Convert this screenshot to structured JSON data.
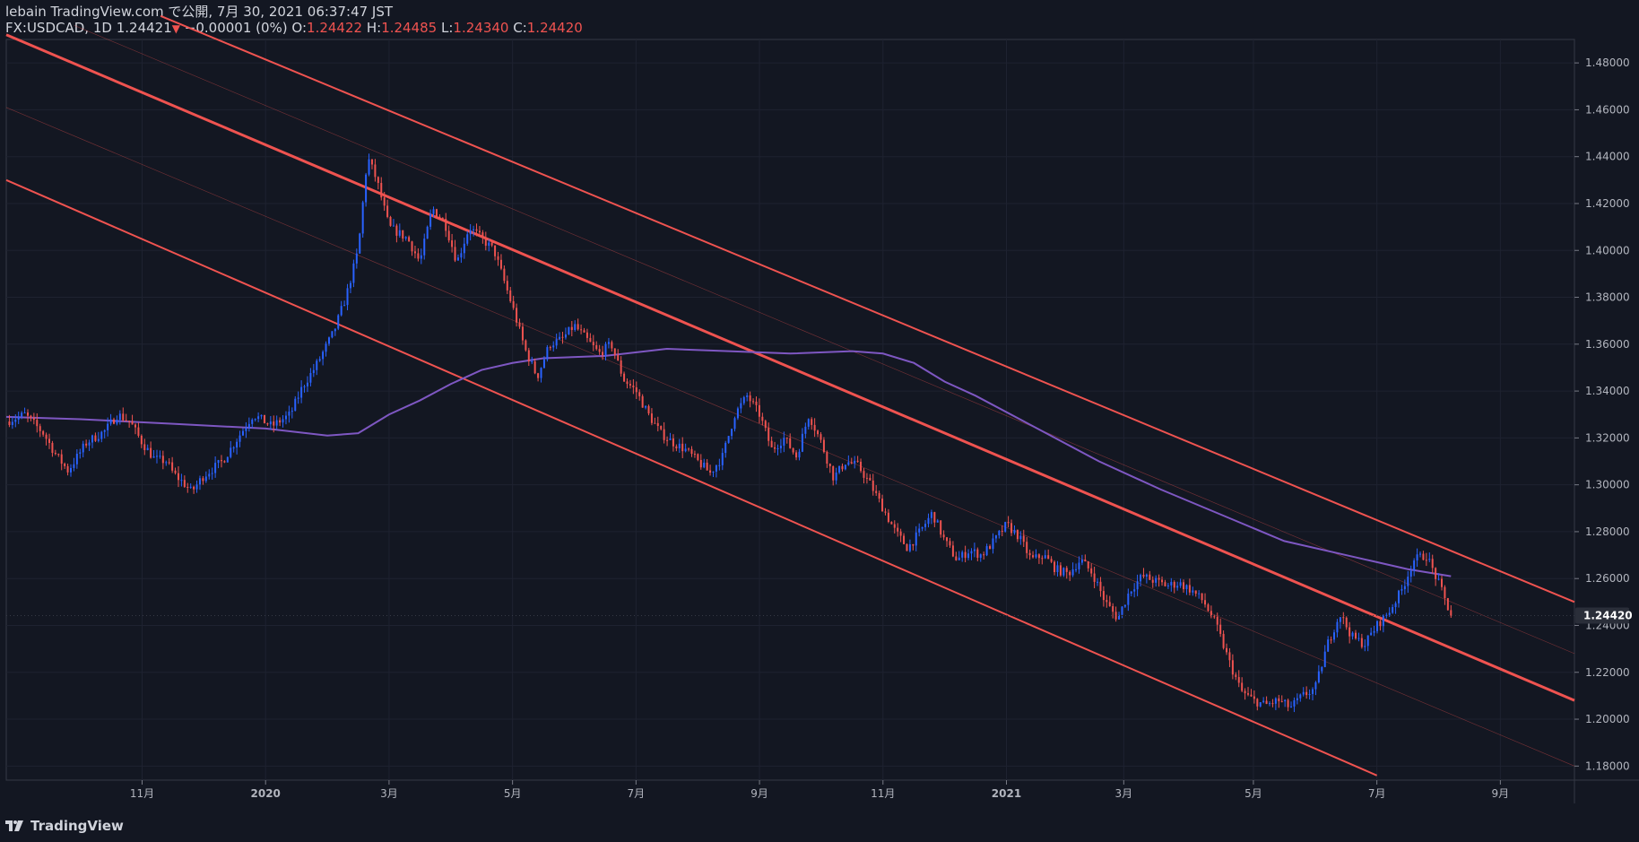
{
  "header": {
    "publisher": "lebain TradingView.com で公開, 7月 30, 2021 06:37:47 JST",
    "symbol": "FX:USDCAD, 1D",
    "last": "1.24421",
    "change": "−0.00001 (0%)",
    "o_label": "O:",
    "o_value": "1.24422",
    "h_label": "H:",
    "h_value": "1.24485",
    "l_label": "L:",
    "l_value": "1.24340",
    "c_label": "C:",
    "c_value": "1.24420"
  },
  "footer": {
    "brand": "TradingView",
    "logo_icon": "tradingview-logo-icon"
  },
  "colors": {
    "background": "#131722",
    "grid": "#1e2230",
    "up": "#2962ff",
    "down": "#ef5350",
    "channel": "#ef5350",
    "ma": "#7e57c2",
    "text": "#d1d4dc",
    "axis_text": "#b2b5be"
  },
  "chart_data": {
    "type": "candlestick",
    "symbol": "FX:USDCAD",
    "interval": "1D",
    "y_axis": {
      "ticks": [
        "1.48000",
        "1.46000",
        "1.44000",
        "1.42000",
        "1.40000",
        "1.38000",
        "1.36000",
        "1.34000",
        "1.32000",
        "1.30000",
        "1.28000",
        "1.26000",
        "1.24000",
        "1.22000",
        "1.20000",
        "1.18000"
      ],
      "tick_values": [
        1.48,
        1.46,
        1.44,
        1.42,
        1.4,
        1.38,
        1.36,
        1.34,
        1.32,
        1.3,
        1.28,
        1.26,
        1.24,
        1.22,
        1.2,
        1.18
      ],
      "range": [
        1.174,
        1.49
      ]
    },
    "x_axis": {
      "labels": [
        {
          "text": "11月",
          "t": 2.5
        },
        {
          "text": "2020",
          "t": 4.5
        },
        {
          "text": "3月",
          "t": 6.5
        },
        {
          "text": "5月",
          "t": 8.5
        },
        {
          "text": "7月",
          "t": 10.5
        },
        {
          "text": "9月",
          "t": 12.5
        },
        {
          "text": "11月",
          "t": 14.5
        },
        {
          "text": "2021",
          "t": 16.5
        },
        {
          "text": "3月",
          "t": 18.4
        },
        {
          "text": "5月",
          "t": 20.5
        },
        {
          "text": "7月",
          "t": 22.5
        },
        {
          "text": "9月",
          "t": 24.5
        }
      ],
      "range": [
        0.3,
        25.7
      ]
    },
    "price_label": "1.24420",
    "price_value": 1.2442,
    "close_path": [
      [
        0.3,
        1.327
      ],
      [
        0.6,
        1.33
      ],
      [
        0.9,
        1.322
      ],
      [
        1.1,
        1.313
      ],
      [
        1.3,
        1.306
      ],
      [
        1.6,
        1.318
      ],
      [
        1.9,
        1.323
      ],
      [
        2.1,
        1.33
      ],
      [
        2.3,
        1.327
      ],
      [
        2.5,
        1.318
      ],
      [
        2.7,
        1.311
      ],
      [
        2.9,
        1.31
      ],
      [
        3.0,
        1.305
      ],
      [
        3.2,
        1.3
      ],
      [
        3.3,
        1.297
      ],
      [
        3.5,
        1.304
      ],
      [
        3.8,
        1.31
      ],
      [
        4.1,
        1.322
      ],
      [
        4.3,
        1.33
      ],
      [
        4.6,
        1.325
      ],
      [
        4.9,
        1.33
      ],
      [
        5.1,
        1.342
      ],
      [
        5.3,
        1.35
      ],
      [
        5.6,
        1.365
      ],
      [
        5.8,
        1.38
      ],
      [
        6.0,
        1.4
      ],
      [
        6.15,
        1.44
      ],
      [
        6.3,
        1.43
      ],
      [
        6.5,
        1.41
      ],
      [
        6.8,
        1.405
      ],
      [
        7.0,
        1.395
      ],
      [
        7.2,
        1.418
      ],
      [
        7.4,
        1.412
      ],
      [
        7.6,
        1.395
      ],
      [
        7.8,
        1.41
      ],
      [
        8.0,
        1.405
      ],
      [
        8.2,
        1.4
      ],
      [
        8.5,
        1.376
      ],
      [
        8.7,
        1.358
      ],
      [
        8.9,
        1.346
      ],
      [
        9.1,
        1.36
      ],
      [
        9.3,
        1.362
      ],
      [
        9.5,
        1.368
      ],
      [
        9.7,
        1.362
      ],
      [
        9.9,
        1.356
      ],
      [
        10.1,
        1.36
      ],
      [
        10.3,
        1.345
      ],
      [
        10.5,
        1.34
      ],
      [
        10.7,
        1.33
      ],
      [
        10.9,
        1.322
      ],
      [
        11.1,
        1.318
      ],
      [
        11.3,
        1.315
      ],
      [
        11.5,
        1.31
      ],
      [
        11.7,
        1.305
      ],
      [
        11.9,
        1.312
      ],
      [
        12.1,
        1.33
      ],
      [
        12.3,
        1.338
      ],
      [
        12.5,
        1.33
      ],
      [
        12.7,
        1.315
      ],
      [
        12.9,
        1.32
      ],
      [
        13.1,
        1.312
      ],
      [
        13.3,
        1.33
      ],
      [
        13.5,
        1.318
      ],
      [
        13.7,
        1.303
      ],
      [
        13.9,
        1.31
      ],
      [
        14.1,
        1.308
      ],
      [
        14.3,
        1.3
      ],
      [
        14.5,
        1.29
      ],
      [
        14.7,
        1.28
      ],
      [
        14.9,
        1.273
      ],
      [
        15.1,
        1.28
      ],
      [
        15.3,
        1.288
      ],
      [
        15.5,
        1.276
      ],
      [
        15.7,
        1.268
      ],
      [
        15.9,
        1.272
      ],
      [
        16.1,
        1.27
      ],
      [
        16.3,
        1.276
      ],
      [
        16.5,
        1.283
      ],
      [
        16.7,
        1.278
      ],
      [
        16.9,
        1.268
      ],
      [
        17.1,
        1.27
      ],
      [
        17.3,
        1.264
      ],
      [
        17.5,
        1.262
      ],
      [
        17.7,
        1.268
      ],
      [
        17.9,
        1.262
      ],
      [
        18.1,
        1.25
      ],
      [
        18.3,
        1.243
      ],
      [
        18.5,
        1.255
      ],
      [
        18.7,
        1.261
      ],
      [
        18.9,
        1.259
      ],
      [
        19.1,
        1.257
      ],
      [
        19.3,
        1.258
      ],
      [
        19.5,
        1.255
      ],
      [
        19.7,
        1.25
      ],
      [
        19.9,
        1.24
      ],
      [
        20.1,
        1.225
      ],
      [
        20.3,
        1.212
      ],
      [
        20.5,
        1.208
      ],
      [
        20.7,
        1.206
      ],
      [
        20.9,
        1.208
      ],
      [
        21.1,
        1.205
      ],
      [
        21.3,
        1.21
      ],
      [
        21.5,
        1.213
      ],
      [
        21.7,
        1.232
      ],
      [
        21.9,
        1.245
      ],
      [
        22.1,
        1.235
      ],
      [
        22.3,
        1.232
      ],
      [
        22.5,
        1.24
      ],
      [
        22.7,
        1.246
      ],
      [
        22.9,
        1.255
      ],
      [
        23.1,
        1.268
      ],
      [
        23.3,
        1.27
      ],
      [
        23.5,
        1.258
      ],
      [
        23.7,
        1.2442
      ]
    ],
    "moving_average": [
      [
        0.3,
        1.329
      ],
      [
        1.5,
        1.328
      ],
      [
        3.0,
        1.326
      ],
      [
        4.5,
        1.324
      ],
      [
        5.5,
        1.321
      ],
      [
        6.0,
        1.322
      ],
      [
        6.5,
        1.33
      ],
      [
        7.0,
        1.336
      ],
      [
        7.5,
        1.343
      ],
      [
        8.0,
        1.349
      ],
      [
        8.5,
        1.352
      ],
      [
        9.0,
        1.354
      ],
      [
        10.0,
        1.355
      ],
      [
        11.0,
        1.358
      ],
      [
        12.0,
        1.357
      ],
      [
        13.0,
        1.356
      ],
      [
        14.0,
        1.357
      ],
      [
        14.5,
        1.356
      ],
      [
        15.0,
        1.352
      ],
      [
        15.5,
        1.344
      ],
      [
        16.0,
        1.338
      ],
      [
        17.0,
        1.324
      ],
      [
        18.0,
        1.31
      ],
      [
        19.0,
        1.298
      ],
      [
        20.0,
        1.287
      ],
      [
        21.0,
        1.276
      ],
      [
        22.0,
        1.27
      ],
      [
        22.5,
        1.267
      ],
      [
        23.0,
        1.264
      ],
      [
        23.7,
        1.261
      ]
    ],
    "channel_lines": [
      {
        "name": "upper",
        "points": [
          [
            2.8,
            1.5
          ],
          [
            25.7,
            1.25
          ]
        ],
        "width": 2
      },
      {
        "name": "middle",
        "points": [
          [
            0.3,
            1.492
          ],
          [
            25.7,
            1.208
          ]
        ],
        "width": 3
      },
      {
        "name": "lower",
        "points": [
          [
            0.3,
            1.43
          ],
          [
            22.5,
            1.176
          ]
        ],
        "width": 2
      },
      {
        "name": "upper-mid",
        "points": [
          [
            1.4,
            1.496
          ],
          [
            25.7,
            1.228
          ]
        ],
        "width": 0.6
      },
      {
        "name": "lower-mid",
        "points": [
          [
            0.3,
            1.461
          ],
          [
            25.7,
            1.18
          ]
        ],
        "width": 0.6
      }
    ]
  }
}
